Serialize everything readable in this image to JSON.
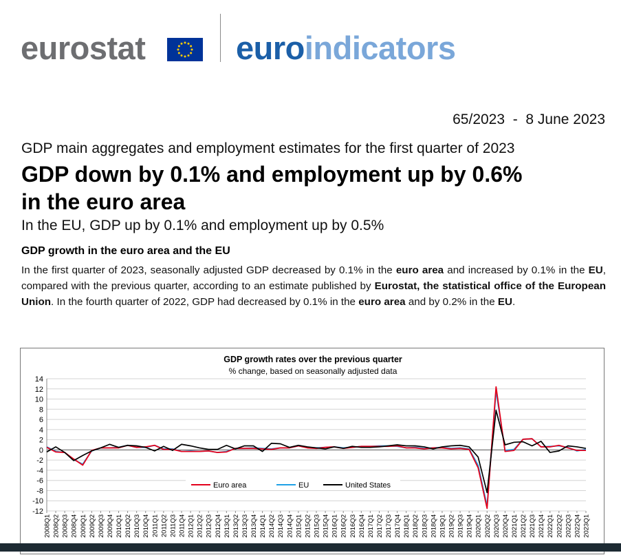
{
  "header": {
    "logo_left": "eurostat",
    "logo_right_part1": "euro",
    "logo_right_part2": "indicators"
  },
  "release": {
    "number": "65/2023",
    "separator": "-",
    "date": "8 June 2023"
  },
  "subtitle": "GDP main aggregates and employment estimates for the first quarter of 2023",
  "headline_line1": "GDP down by 0.1% and employment up by 0.6%",
  "headline_line2": "in the euro area",
  "lead": "In the EU, GDP up by 0.1% and employment up by 0.5%",
  "section_heading": "GDP growth in the euro area and the EU",
  "body": {
    "t1": "In the first quarter of 2023, seasonally adjusted GDP decreased by 0.1% in the ",
    "b1": "euro area",
    "t2": " and increased by 0.1% in the ",
    "b2": "EU",
    "t3": ", compared with the previous quarter, according to an estimate published by ",
    "b3": "Eurostat, the statistical office of the European Union",
    "t4": ". In the fourth quarter of 2022, GDP had decreased by 0.1% in the ",
    "b4": "euro area",
    "t5": " and by 0.2% in the ",
    "b5": "EU",
    "t6": "."
  },
  "colors": {
    "euro_area": "#e3001b",
    "eu": "#1ea0e6",
    "united_states": "#000000",
    "eurostat_grey": "#6d6e71",
    "euro_blue": "#1b5fa8",
    "indicators_light_blue": "#7aa7d9"
  },
  "chart_data": {
    "type": "line",
    "title": "GDP growth rates over the previous quarter",
    "subtitle": "% change, based on seasonally adjusted data",
    "ylim": [
      -12,
      14
    ],
    "yticks": [
      -12,
      -10,
      -8,
      -6,
      -4,
      -2,
      0,
      2,
      4,
      6,
      8,
      10,
      12,
      14
    ],
    "grid": true,
    "legend_position": "bottom-center",
    "x": [
      "2008Q1",
      "2008Q2",
      "2008Q3",
      "2008Q4",
      "2009Q1",
      "2009Q2",
      "2009Q3",
      "2009Q4",
      "2010Q1",
      "2010Q2",
      "2010Q3",
      "2010Q4",
      "2011Q1",
      "2011Q2",
      "2011Q3",
      "2011Q4",
      "2012Q1",
      "2012Q2",
      "2012Q3",
      "2012Q4",
      "2013Q1",
      "2013Q2",
      "2013Q3",
      "2013Q4",
      "2014Q1",
      "2014Q2",
      "2014Q3",
      "2014Q4",
      "2015Q1",
      "2015Q2",
      "2015Q3",
      "2015Q4",
      "2016Q1",
      "2016Q2",
      "2016Q3",
      "2016Q4",
      "2017Q1",
      "2017Q2",
      "2017Q3",
      "2017Q4",
      "2018Q1",
      "2018Q2",
      "2018Q3",
      "2018Q4",
      "2019Q1",
      "2019Q2",
      "2019Q3",
      "2019Q4",
      "2020Q1",
      "2020Q2",
      "2020Q3",
      "2020Q4",
      "2021Q1",
      "2021Q2",
      "2021Q3",
      "2021Q4",
      "2022Q1",
      "2022Q2",
      "2022Q3",
      "2022Q4",
      "2023Q1"
    ],
    "series": [
      {
        "name": "Euro area",
        "color": "#e3001b",
        "values": [
          0.5,
          -0.4,
          -0.5,
          -1.8,
          -3.0,
          -0.1,
          0.4,
          0.4,
          0.4,
          0.9,
          0.5,
          0.6,
          0.9,
          0.1,
          0.1,
          -0.3,
          -0.3,
          -0.3,
          -0.2,
          -0.5,
          -0.4,
          0.3,
          0.3,
          0.3,
          0.2,
          0.1,
          0.4,
          0.4,
          0.8,
          0.4,
          0.3,
          0.5,
          0.6,
          0.3,
          0.5,
          0.7,
          0.7,
          0.7,
          0.7,
          0.8,
          0.4,
          0.4,
          0.2,
          0.4,
          0.4,
          0.2,
          0.3,
          0.1,
          -3.5,
          -11.5,
          12.4,
          -0.3,
          -0.1,
          2.1,
          2.2,
          0.6,
          0.6,
          0.9,
          0.4,
          -0.1,
          -0.1
        ]
      },
      {
        "name": "EU",
        "color": "#1ea0e6",
        "values": [
          0.6,
          -0.3,
          -0.5,
          -1.9,
          -2.8,
          -0.2,
          0.4,
          0.4,
          0.5,
          0.9,
          0.5,
          0.5,
          0.9,
          0.2,
          0.2,
          -0.3,
          -0.2,
          -0.3,
          -0.2,
          -0.5,
          -0.3,
          0.3,
          0.3,
          0.4,
          0.3,
          0.2,
          0.4,
          0.4,
          0.8,
          0.5,
          0.4,
          0.5,
          0.6,
          0.4,
          0.5,
          0.7,
          0.7,
          0.8,
          0.8,
          0.7,
          0.4,
          0.5,
          0.3,
          0.4,
          0.5,
          0.3,
          0.4,
          0.2,
          -3.0,
          -11.0,
          11.6,
          -0.1,
          0.1,
          2.1,
          2.2,
          0.6,
          0.7,
          0.8,
          0.5,
          -0.2,
          0.1
        ]
      },
      {
        "name": "United States",
        "color": "#000000",
        "values": [
          -0.4,
          0.6,
          -0.5,
          -2.1,
          -1.1,
          -0.2,
          0.4,
          1.1,
          0.5,
          0.9,
          0.8,
          0.5,
          -0.2,
          0.7,
          -0.1,
          1.1,
          0.8,
          0.4,
          0.1,
          0.1,
          0.9,
          0.2,
          0.8,
          0.8,
          -0.3,
          1.3,
          1.2,
          0.5,
          0.9,
          0.6,
          0.4,
          0.2,
          0.6,
          0.3,
          0.7,
          0.5,
          0.5,
          0.6,
          0.8,
          1.0,
          0.8,
          0.8,
          0.6,
          0.2,
          0.6,
          0.8,
          0.9,
          0.6,
          -1.4,
          -8.4,
          7.8,
          1.0,
          1.5,
          1.6,
          0.8,
          1.7,
          -0.5,
          -0.2,
          0.8,
          0.6,
          0.3
        ]
      }
    ]
  }
}
